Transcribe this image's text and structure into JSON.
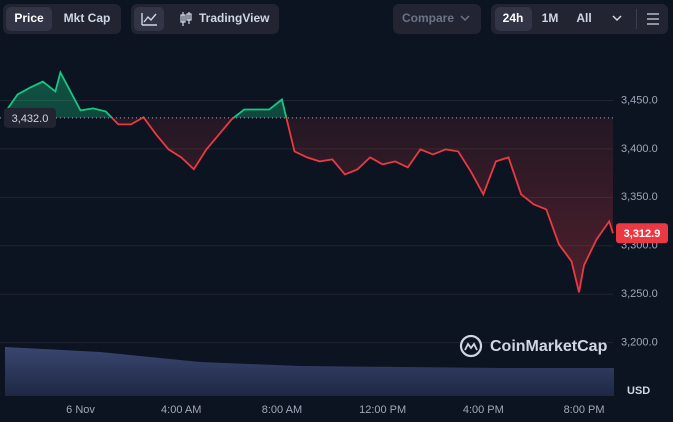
{
  "toolbar": {
    "price": "Price",
    "mkt_cap": "Mkt Cap",
    "tradingview": "TradingView",
    "compare": "Compare",
    "range_24h": "24h",
    "range_1m": "1M",
    "range_all": "All"
  },
  "chart_data": {
    "type": "line",
    "watermark": "CoinMarketCap",
    "ylabel": "USD",
    "x": [
      -3,
      -2.5,
      -2,
      -1.5,
      -1,
      -0.8,
      0,
      0.5,
      1,
      1.5,
      2,
      2.5,
      3,
      3.5,
      4,
      4.5,
      5,
      5.5,
      6,
      6.5,
      7,
      7.5,
      8,
      8.5,
      9,
      9.5,
      10,
      10.5,
      11,
      11.5,
      12,
      12.5,
      13,
      13.5,
      14,
      14.5,
      15,
      15.5,
      16,
      16.5,
      17,
      17.5,
      18,
      18.5,
      19,
      19.5,
      19.8,
      20,
      20.5,
      21,
      21.15
    ],
    "values": [
      3437.6,
      3456.2,
      3463.4,
      3469.6,
      3459.3,
      3478.9,
      3439.7,
      3441.8,
      3438.7,
      3425.3,
      3425.3,
      3432.5,
      3415.0,
      3399.5,
      3391.2,
      3379.0,
      3399.5,
      3415.0,
      3430.4,
      3440.7,
      3440.7,
      3440.7,
      3451.0,
      3397.4,
      3391.2,
      3387.1,
      3389.2,
      3373.7,
      3378.9,
      3391.2,
      3384.0,
      3387.1,
      3380.9,
      3399.5,
      3394.3,
      3399.5,
      3397.4,
      3376.8,
      3353.1,
      3387.1,
      3391.2,
      3353.1,
      3342.8,
      3337.6,
      3301.5,
      3284.0,
      3252.0,
      3279.9,
      3306.7,
      3325.2,
      3312.9
    ],
    "colors": {
      "up": "#16c784",
      "down": "#ea3943"
    },
    "baseline": {
      "value": 3432,
      "label": "3,432.0"
    },
    "last": {
      "value": 3312.9,
      "label": "3,312.9"
    },
    "xlim": [
      -3,
      21.15
    ],
    "xticks": [
      {
        "value": 0,
        "label": "6 Nov"
      },
      {
        "value": 4,
        "label": "4:00 AM"
      },
      {
        "value": 8,
        "label": "8:00 AM"
      },
      {
        "value": 12,
        "label": "12:00 PM"
      },
      {
        "value": 16,
        "label": "4:00 PM"
      },
      {
        "value": 20,
        "label": "8:00 PM"
      }
    ],
    "ylim": [
      3146,
      3500
    ],
    "yticks": [
      {
        "value": 3200,
        "label": "3,200.0"
      },
      {
        "value": 3250,
        "label": "3,250.0"
      },
      {
        "value": 3300,
        "label": "3,300.0"
      },
      {
        "value": 3350,
        "label": "3,350.0"
      },
      {
        "value": 3400,
        "label": "3,400.0"
      },
      {
        "value": 3450,
        "label": "3,450.0"
      }
    ],
    "grid": true
  }
}
